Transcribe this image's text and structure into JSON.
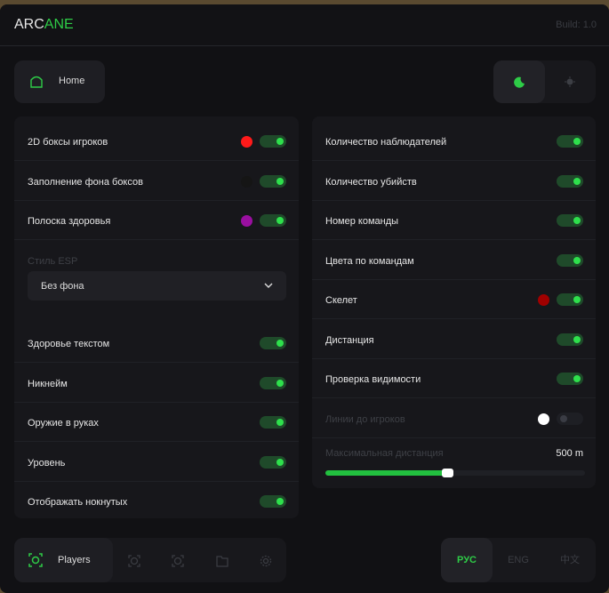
{
  "header": {
    "logo_a": "ARC",
    "logo_b": "ANE",
    "build": "Build: 1.0"
  },
  "top_tab": {
    "label": "Home",
    "icon": "home-icon"
  },
  "theme": {
    "active": "dark",
    "dark_icon": "moon-icon",
    "light_icon": "sun-icon"
  },
  "accent": "#2ecc47",
  "left": {
    "rows": [
      {
        "label": "2D боксы игроков",
        "on": true,
        "color": "#ff1a1a"
      },
      {
        "label": "Заполнение фона боксов",
        "on": true,
        "color": "#151515"
      },
      {
        "label": "Полоска здоровья",
        "on": true,
        "color": "#9a0fa0"
      }
    ],
    "style_label": "Стиль ESP",
    "style_value": "Без фона",
    "rows2": [
      {
        "label": "Здоровье текстом",
        "on": true
      },
      {
        "label": "Никнейм",
        "on": true
      },
      {
        "label": "Оружие в руках",
        "on": true
      },
      {
        "label": "Уровень",
        "on": true
      },
      {
        "label": "Отображать нокнутых",
        "on": true
      }
    ]
  },
  "right": {
    "rows": [
      {
        "label": "Количество наблюдателей",
        "on": true
      },
      {
        "label": "Количество убийств",
        "on": true
      },
      {
        "label": "Номер команды",
        "on": true
      },
      {
        "label": "Цвета по командам",
        "on": true
      },
      {
        "label": "Скелет",
        "on": true,
        "color": "#a00000"
      },
      {
        "label": "Дистанция",
        "on": true
      },
      {
        "label": "Проверка видимости",
        "on": true
      },
      {
        "label": "Линии до игроков",
        "on": false,
        "color": "#ffffff",
        "disabled": true
      }
    ],
    "slider": {
      "label": "Максимальная дистанция",
      "value_text": "500 m",
      "fraction": 0.47
    }
  },
  "bottom_nav": {
    "active_label": "Players",
    "items": [
      "players-icon",
      "radar-icon",
      "aim-icon",
      "folder-icon",
      "gear-icon"
    ]
  },
  "languages": [
    {
      "label": "РУС",
      "active": true
    },
    {
      "label": "ENG",
      "active": false
    },
    {
      "label": "中文",
      "active": false
    }
  ]
}
